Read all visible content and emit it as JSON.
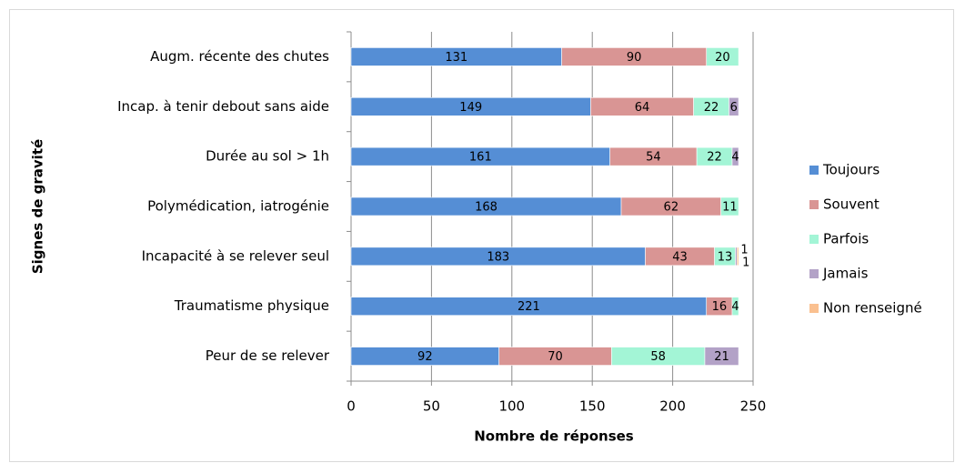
{
  "chart_data": {
    "type": "stacked-bar-horizontal",
    "xlabel": "Nombre de réponses",
    "ylabel": "Signes de gravité",
    "categories": [
      "Augm. récente des chutes",
      "Incap. à tenir debout sans aide",
      "Durée au sol > 1h",
      "Polymédication, iatrogénie",
      "Incapacité à se relever seul",
      "Traumatisme physique",
      "Peur de se relever"
    ],
    "series": [
      {
        "name": "Toujours",
        "color": "#558ed5",
        "values": [
          131,
          149,
          161,
          168,
          183,
          221,
          92
        ]
      },
      {
        "name": "Souvent",
        "color": "#d99594",
        "values": [
          90,
          64,
          54,
          62,
          43,
          16,
          70
        ]
      },
      {
        "name": "Parfois",
        "color": "#a3f5d6",
        "values": [
          20,
          22,
          22,
          11,
          13,
          4,
          58
        ]
      },
      {
        "name": "Jamais",
        "color": "#b3a2c7",
        "values": [
          null,
          6,
          4,
          null,
          1,
          null,
          21
        ]
      },
      {
        "name": "Non renseigné",
        "color": "#fac090",
        "values": [
          null,
          null,
          null,
          null,
          1,
          null,
          null
        ]
      }
    ],
    "xlim": [
      0,
      250
    ],
    "xticks": [
      0,
      50,
      100,
      150,
      200,
      250
    ],
    "grid": true,
    "legend": "right"
  }
}
